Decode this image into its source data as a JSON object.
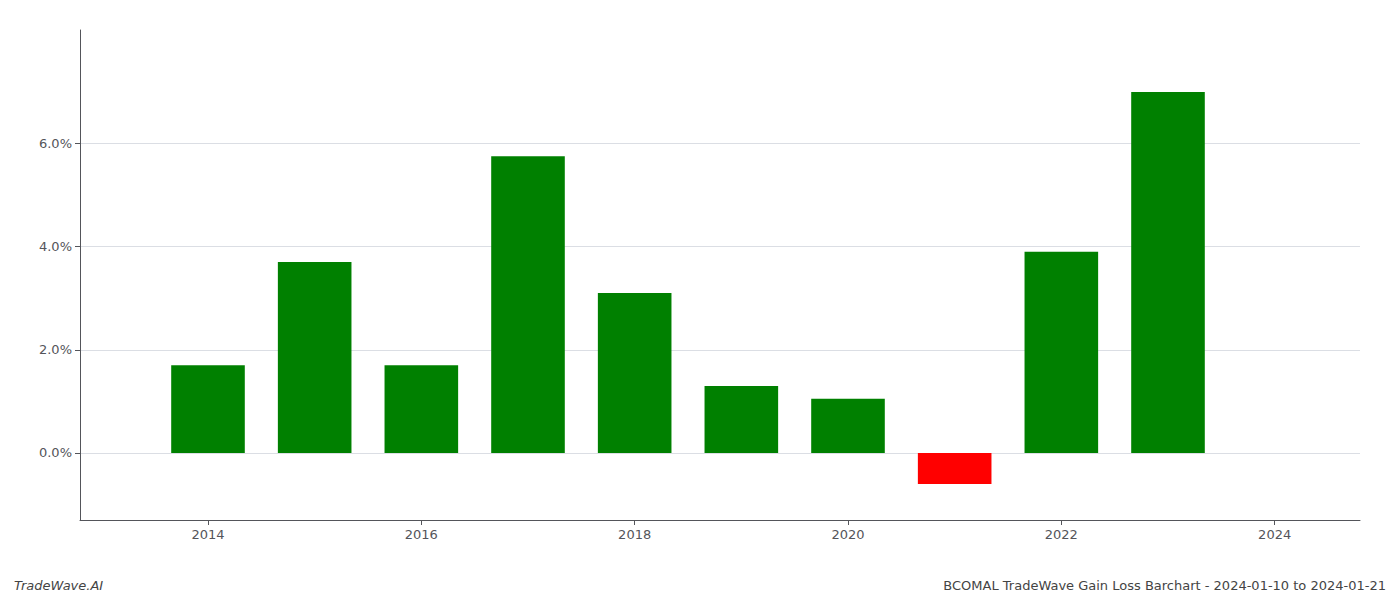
{
  "chart_data": {
    "type": "bar",
    "x": [
      2014,
      2015,
      2016,
      2017,
      2018,
      2019,
      2020,
      2021,
      2022,
      2023
    ],
    "values": [
      0.017,
      0.037,
      0.017,
      0.0575,
      0.031,
      0.013,
      0.0105,
      -0.006,
      0.039,
      0.07
    ],
    "colors": [
      "#008000",
      "#008000",
      "#008000",
      "#008000",
      "#008000",
      "#008000",
      "#008000",
      "#ff0000",
      "#008000",
      "#008000"
    ],
    "xlim": [
      2012.8,
      2024.8
    ],
    "xticks": [
      2014,
      2016,
      2018,
      2020,
      2022,
      2024
    ],
    "ylim": [
      -0.013,
      0.082
    ],
    "yticks": [
      {
        "value": 0.0,
        "label": "0.0%"
      },
      {
        "value": 0.02,
        "label": "2.0%"
      },
      {
        "value": 0.04,
        "label": "4.0%"
      },
      {
        "value": 0.06,
        "label": "6.0%"
      }
    ],
    "grid": true,
    "annotations": [
      "TradeWave.AI",
      "BCOMAL TradeWave Gain Loss Barchart - 2024-01-10 to 2024-01-21"
    ]
  }
}
